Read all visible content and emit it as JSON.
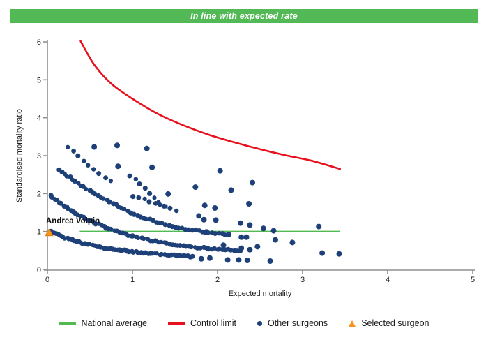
{
  "banner": {
    "text": "In line with expected rate",
    "bg_color": "#53b957"
  },
  "chart_data": {
    "type": "scatter",
    "title": "In line with expected rate",
    "xlabel": "Expected mortality",
    "ylabel": "Standardised mortality ratio",
    "xlim": [
      0,
      5
    ],
    "ylim": [
      0,
      6
    ],
    "x_ticks": [
      0,
      1,
      2,
      3,
      4,
      5
    ],
    "y_ticks": [
      0,
      1,
      2,
      3,
      4,
      5,
      6
    ],
    "grid": false,
    "legend_position": "bottom-center",
    "national_average": {
      "y": 1,
      "x_start": 0.38,
      "x_end": 3.44,
      "color": "#52ba52"
    },
    "control_limit": {
      "color": "#e8101c",
      "points": [
        [
          0.39,
          6.02
        ],
        [
          0.55,
          5.4
        ],
        [
          0.75,
          4.9
        ],
        [
          1.0,
          4.5
        ],
        [
          1.3,
          4.1
        ],
        [
          1.6,
          3.8
        ],
        [
          1.9,
          3.55
        ],
        [
          2.2,
          3.35
        ],
        [
          2.5,
          3.17
        ],
        [
          2.8,
          3.01
        ],
        [
          3.1,
          2.87
        ],
        [
          3.44,
          2.65
        ]
      ]
    },
    "selected_surgeon": {
      "name": "Andrea Volpin",
      "x": 0.02,
      "y": 0.97,
      "color": "#f7941d"
    },
    "other_surgeons": {
      "color": "#1e4079",
      "bands": [
        {
          "n": 62,
          "points": [
            [
              0.04,
              1.0
            ],
            [
              0.2,
              0.84
            ],
            [
              0.4,
              0.7
            ],
            [
              0.65,
              0.58
            ],
            [
              0.9,
              0.5
            ],
            [
              1.2,
              0.42
            ],
            [
              1.5,
              0.37
            ],
            [
              1.72,
              0.34
            ]
          ]
        },
        {
          "n": 72,
          "points": [
            [
              0.02,
              1.98
            ],
            [
              0.2,
              1.66
            ],
            [
              0.45,
              1.33
            ],
            [
              0.7,
              1.09
            ],
            [
              0.95,
              0.9
            ],
            [
              1.2,
              0.77
            ],
            [
              1.5,
              0.65
            ],
            [
              1.8,
              0.57
            ],
            [
              2.05,
              0.53
            ],
            [
              2.28,
              0.49
            ]
          ]
        },
        {
          "n": 56,
          "points": [
            [
              0.12,
              2.66
            ],
            [
              0.3,
              2.36
            ],
            [
              0.55,
              2.0
            ],
            [
              0.8,
              1.7
            ],
            [
              1.05,
              1.42
            ],
            [
              1.3,
              1.24
            ],
            [
              1.55,
              1.1
            ],
            [
              1.75,
              1.02
            ],
            [
              1.95,
              0.96
            ],
            [
              2.15,
              0.9
            ]
          ]
        },
        {
          "n": 9,
          "points": [
            [
              0.21,
              3.29
            ],
            [
              0.35,
              3.0
            ],
            [
              0.5,
              2.72
            ],
            [
              0.65,
              2.46
            ],
            [
              0.78,
              2.28
            ]
          ]
        },
        {
          "n": 10,
          "points": [
            [
              0.94,
              2.52
            ],
            [
              1.08,
              2.28
            ],
            [
              1.2,
              1.98
            ],
            [
              1.37,
              1.68
            ],
            [
              1.55,
              1.52
            ]
          ]
        },
        {
          "n": 7,
          "points": [
            [
              0.98,
              1.96
            ],
            [
              1.12,
              1.86
            ],
            [
              1.28,
              1.74
            ],
            [
              1.42,
              1.63
            ]
          ]
        }
      ],
      "points": [
        [
          0.55,
          3.23
        ],
        [
          0.82,
          3.27
        ],
        [
          1.17,
          3.19
        ],
        [
          0.83,
          2.72
        ],
        [
          1.23,
          2.69
        ],
        [
          1.42,
          1.99
        ],
        [
          1.74,
          2.17
        ],
        [
          2.03,
          2.6
        ],
        [
          2.41,
          2.29
        ],
        [
          2.16,
          2.09
        ],
        [
          1.85,
          1.69
        ],
        [
          1.97,
          1.62
        ],
        [
          2.37,
          1.73
        ],
        [
          1.78,
          1.41
        ],
        [
          1.84,
          1.31
        ],
        [
          1.98,
          1.3
        ],
        [
          2.27,
          1.22
        ],
        [
          2.38,
          1.17
        ],
        [
          2.54,
          1.08
        ],
        [
          2.66,
          1.02
        ],
        [
          3.19,
          1.13
        ],
        [
          1.87,
          0.99
        ],
        [
          2.13,
          0.92
        ],
        [
          2.28,
          0.85
        ],
        [
          2.34,
          0.85
        ],
        [
          2.07,
          0.64
        ],
        [
          2.28,
          0.56
        ],
        [
          2.38,
          0.52
        ],
        [
          2.47,
          0.6
        ],
        [
          2.68,
          0.78
        ],
        [
          2.88,
          0.71
        ],
        [
          3.23,
          0.43
        ],
        [
          3.43,
          0.41
        ],
        [
          1.81,
          0.28
        ],
        [
          1.91,
          0.3
        ],
        [
          2.12,
          0.25
        ],
        [
          2.25,
          0.25
        ],
        [
          2.35,
          0.24
        ],
        [
          2.62,
          0.22
        ]
      ]
    },
    "legend": [
      {
        "label": "National average",
        "swatch": "line",
        "color": "#52ba52"
      },
      {
        "label": "Control limit",
        "swatch": "line",
        "color": "#e8101c"
      },
      {
        "label": "Other surgeons",
        "swatch": "dot",
        "color": "#1e4079"
      },
      {
        "label": "Selected surgeon",
        "swatch": "triangle",
        "color": "#f7941d"
      }
    ]
  }
}
